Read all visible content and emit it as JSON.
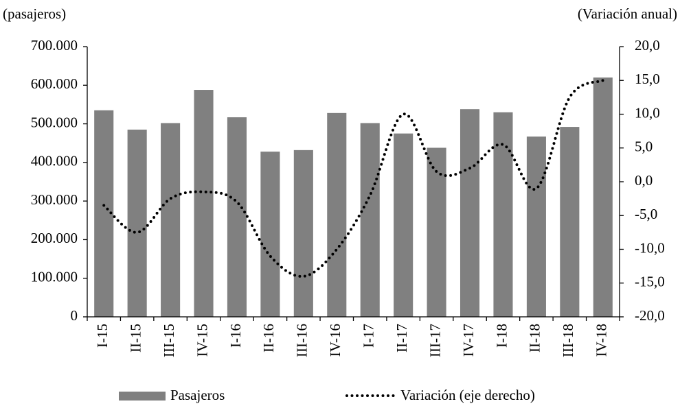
{
  "chart_data": {
    "type": "bar_line",
    "y_label": "(pasajeros)",
    "y2_label": "(Variación anual)",
    "categories": [
      "I-15",
      "II-15",
      "III-15",
      "IV-15",
      "I-16",
      "II-16",
      "III-16",
      "IV-16",
      "I-17",
      "II-17",
      "III-17",
      "IV-17",
      "I-18",
      "II-18",
      "III-18",
      "IV-18"
    ],
    "series": [
      {
        "name": "Pasajeros",
        "type": "bar",
        "color": "#808080",
        "values": [
          535000,
          485000,
          502000,
          588000,
          517000,
          428000,
          432000,
          528000,
          502000,
          475000,
          438000,
          538000,
          530000,
          467000,
          492000,
          620000
        ]
      },
      {
        "name": "Variación (eje derecho)",
        "type": "line",
        "axis": "y2",
        "color": "#000000",
        "line_style": "dotted",
        "values": [
          -3.5,
          -7.5,
          -2.5,
          -1.5,
          -3,
          -11,
          -14,
          -10,
          -2,
          10,
          1.5,
          2,
          5.5,
          -1,
          12.5,
          15
        ]
      }
    ],
    "ylim": [
      0,
      700000
    ],
    "yticks": [
      0,
      {
        "value": 100000,
        "label": "100.000"
      },
      {
        "value": 200000,
        "label": "200.000"
      },
      {
        "value": 300000,
        "label": "300.000"
      },
      {
        "value": 400000,
        "label": "400.000"
      },
      {
        "value": 500000,
        "label": "500.000"
      },
      {
        "value": 600000,
        "label": "600.000"
      },
      {
        "value": 700000,
        "label": "700.000"
      }
    ],
    "y2lim": [
      -20,
      20
    ],
    "y2ticks": [
      {
        "value": -20,
        "label": "-20,0"
      },
      {
        "value": -15,
        "label": "-15,0"
      },
      {
        "value": -10,
        "label": "-10,0"
      },
      {
        "value": -5,
        "label": "-5,0"
      },
      {
        "value": 0,
        "label": "0,0"
      },
      {
        "value": 5,
        "label": "5,0"
      },
      {
        "value": 10,
        "label": "10,0"
      },
      {
        "value": 15,
        "label": "15,0"
      },
      {
        "value": 20,
        "label": "20,0"
      }
    ],
    "grid": false
  }
}
